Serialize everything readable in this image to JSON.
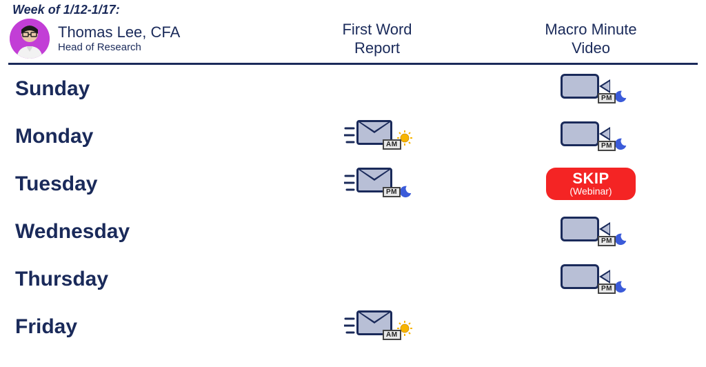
{
  "week_label": "Week of 1/12-1/17:",
  "author": {
    "name": "Thomas Lee, CFA",
    "title": "Head of Research",
    "avatar_bg": "#c23ed6"
  },
  "columns": {
    "col1_line1": "First Word",
    "col1_line2": "Report",
    "col2_line1": "Macro Minute",
    "col2_line2": "Video"
  },
  "colors": {
    "text": "#1a2a5a",
    "icon_stroke": "#1a2a5a",
    "icon_fill": "#b8bfd6",
    "skip_bg": "#f42424",
    "skip_text": "#ffffff",
    "sun": "#f7b500",
    "moon": "#3b5bd9",
    "badge_bg": "#e8e8e8",
    "badge_border": "#444444"
  },
  "badges": {
    "am": "AM",
    "pm": "PM"
  },
  "skip": {
    "main": "SKIP",
    "sub": "(Webinar)"
  },
  "rows": [
    {
      "day": "Sunday",
      "first_word": null,
      "macro": {
        "type": "cam",
        "tod": "pm"
      }
    },
    {
      "day": "Monday",
      "first_word": {
        "tod": "am"
      },
      "macro": {
        "type": "cam",
        "tod": "pm"
      }
    },
    {
      "day": "Tuesday",
      "first_word": {
        "tod": "pm"
      },
      "macro": {
        "type": "skip"
      }
    },
    {
      "day": "Wednesday",
      "first_word": null,
      "macro": {
        "type": "cam",
        "tod": "pm"
      }
    },
    {
      "day": "Thursday",
      "first_word": null,
      "macro": {
        "type": "cam",
        "tod": "pm"
      }
    },
    {
      "day": "Friday",
      "first_word": {
        "tod": "am"
      },
      "macro": null
    }
  ]
}
